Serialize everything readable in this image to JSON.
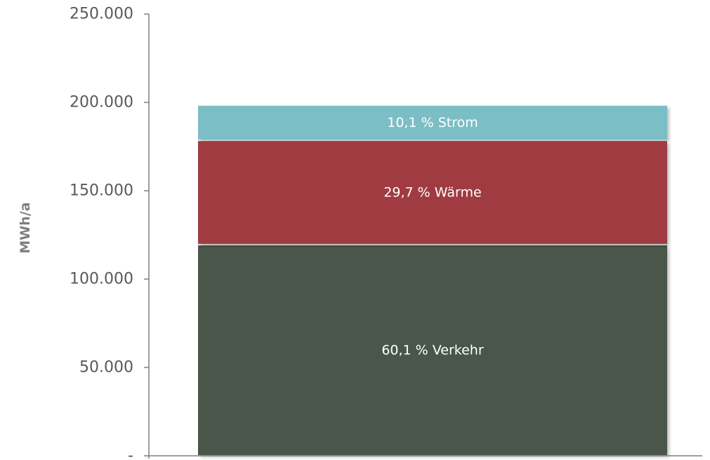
{
  "chart_data": {
    "type": "bar",
    "stacked": true,
    "ylabel": "MWh/a",
    "ylim": [
      0,
      250000
    ],
    "y_ticks": [
      {
        "value": 0,
        "label": "-"
      },
      {
        "value": 50000,
        "label": "50.000"
      },
      {
        "value": 100000,
        "label": "100.000"
      },
      {
        "value": 150000,
        "label": "150.000"
      },
      {
        "value": 200000,
        "label": "200.000"
      },
      {
        "value": 250000,
        "label": "250.000"
      }
    ],
    "categories": [
      ""
    ],
    "series": [
      {
        "name": "Verkehr",
        "label": "60,1 % Verkehr",
        "values": [
          119500
        ],
        "color": "#485649"
      },
      {
        "name": "Wärme",
        "label": "29,7 % Wärme",
        "values": [
          59000
        ],
        "color": "#a03a43"
      },
      {
        "name": "Strom",
        "label": "10,1 % Strom",
        "values": [
          20000
        ],
        "color": "#7cbec6"
      }
    ],
    "grid": false,
    "legend": "none"
  }
}
